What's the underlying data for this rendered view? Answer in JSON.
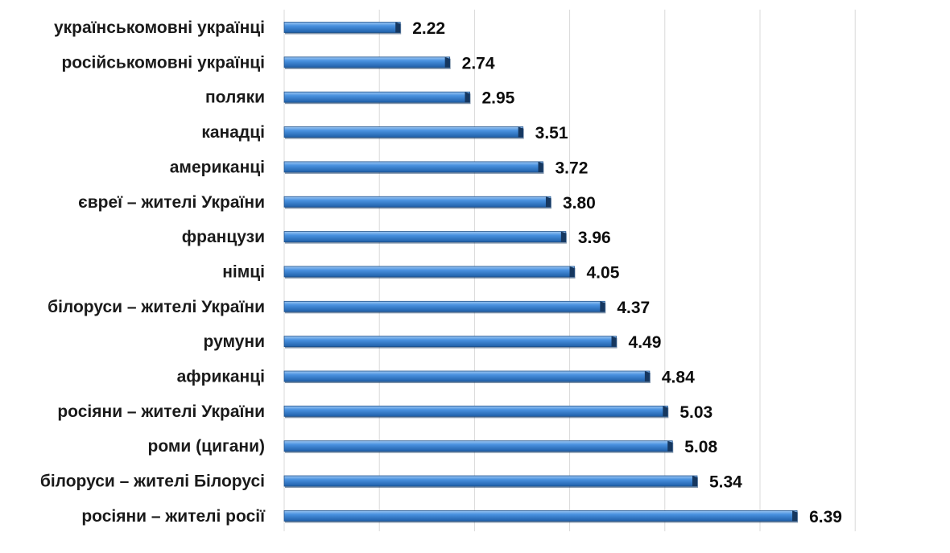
{
  "chart_data": {
    "type": "bar",
    "orientation": "horizontal",
    "categories": [
      "українськомовні українці",
      "російськомовні українці",
      "поляки",
      "канадці",
      "американці",
      "євреї – жителі України",
      "французи",
      "німці",
      "білоруси – жителі України",
      "румуни",
      "африканці",
      "росіяни – жителі України",
      "роми (цигани)",
      "білоруси – жителі Білорусі",
      "росіяни – жителі росії"
    ],
    "values": [
      2.22,
      2.74,
      2.95,
      3.51,
      3.72,
      3.8,
      3.96,
      4.05,
      4.37,
      4.49,
      4.84,
      5.03,
      5.08,
      5.34,
      6.39
    ],
    "value_labels": [
      "2.22",
      "2.74",
      "2.95",
      "3.51",
      "3.72",
      "3.80",
      "3.96",
      "4.05",
      "4.37",
      "4.49",
      "4.84",
      "5.03",
      "5.08",
      "5.34",
      "6.39"
    ],
    "xlim": [
      1,
      8
    ],
    "grid": true,
    "bar_color": "#2f7ed8",
    "bar_shadow_color": "#1f3f66",
    "title": "",
    "xlabel": "",
    "ylabel": ""
  }
}
